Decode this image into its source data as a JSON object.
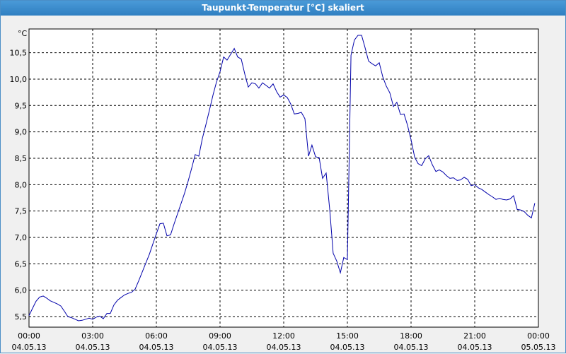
{
  "window": {
    "title": "Taupunkt-Temperatur [°C] skaliert"
  },
  "chart_data": {
    "type": "line",
    "title": "Taupunkt-Temperatur [°C] skaliert",
    "ylabel": "°C",
    "xlabel": "",
    "ylim": [
      5.3,
      10.95
    ],
    "xlim_hours": [
      0,
      24
    ],
    "grid": true,
    "line_color": "#0000aa",
    "y_ticks": [
      {
        "value": 5.5,
        "label": "5,5"
      },
      {
        "value": 6.0,
        "label": "6,0"
      },
      {
        "value": 6.5,
        "label": "6,5"
      },
      {
        "value": 7.0,
        "label": "7,0"
      },
      {
        "value": 7.5,
        "label": "7,5"
      },
      {
        "value": 8.0,
        "label": "8,0"
      },
      {
        "value": 8.5,
        "label": "8,5"
      },
      {
        "value": 9.0,
        "label": "9,0"
      },
      {
        "value": 9.5,
        "label": "9,5"
      },
      {
        "value": 10.0,
        "label": "10,0"
      },
      {
        "value": 10.5,
        "label": "10,5"
      }
    ],
    "x_ticks": [
      {
        "hour": 0,
        "time": "00:00",
        "date": "04.05.13"
      },
      {
        "hour": 3,
        "time": "03:00",
        "date": "04.05.13"
      },
      {
        "hour": 6,
        "time": "06:00",
        "date": "04.05.13"
      },
      {
        "hour": 9,
        "time": "09:00",
        "date": "04.05.13"
      },
      {
        "hour": 12,
        "time": "12:00",
        "date": "04.05.13"
      },
      {
        "hour": 15,
        "time": "15:00",
        "date": "04.05.13"
      },
      {
        "hour": 18,
        "time": "18:00",
        "date": "04.05.13"
      },
      {
        "hour": 21,
        "time": "21:00",
        "date": "04.05.13"
      },
      {
        "hour": 24,
        "time": "00:00",
        "date": "05.05.13"
      }
    ],
    "series": [
      {
        "x": [
          0.0,
          0.17,
          0.33,
          0.5,
          0.67,
          0.83,
          1.0,
          1.17,
          1.33,
          1.5,
          1.67,
          1.83,
          2.0,
          2.17,
          2.33,
          2.5,
          2.67,
          2.83,
          3.0,
          3.17,
          3.33,
          3.5,
          3.67,
          3.83,
          4.0,
          4.17,
          4.33,
          4.5,
          4.67,
          4.83,
          5.0,
          5.17,
          5.33,
          5.5,
          5.67,
          5.83,
          6.0,
          6.17,
          6.33,
          6.5,
          6.67,
          6.83,
          7.0,
          7.17,
          7.33,
          7.5,
          7.67,
          7.83,
          8.0,
          8.17,
          8.33,
          8.5,
          8.67,
          8.83,
          9.0,
          9.17,
          9.33,
          9.5,
          9.67,
          9.83,
          10.0,
          10.17,
          10.33,
          10.5,
          10.67,
          10.83,
          11.0,
          11.17,
          11.33,
          11.5,
          11.67,
          11.83,
          12.0,
          12.17,
          12.33,
          12.5,
          12.67,
          12.83,
          13.0,
          13.17,
          13.33,
          13.5,
          13.67,
          13.83,
          14.0,
          14.17,
          14.33,
          14.5,
          14.67,
          14.83,
          15.0,
          15.17,
          15.33,
          15.5,
          15.67,
          15.83,
          16.0,
          16.17,
          16.33,
          16.5,
          16.67,
          16.83,
          17.0,
          17.17,
          17.33,
          17.5,
          17.67,
          17.83,
          18.0,
          18.17,
          18.33,
          18.5,
          18.67,
          18.83,
          19.0,
          19.17,
          19.33,
          19.5,
          19.67,
          19.83,
          20.0,
          20.17,
          20.33,
          20.5,
          20.67,
          20.83,
          21.0,
          21.17,
          21.33,
          21.5,
          21.67,
          21.83,
          22.0,
          22.17,
          22.33,
          22.5,
          22.67,
          22.83,
          23.0,
          23.17,
          23.33,
          23.5,
          23.67,
          23.83
        ],
        "y": [
          5.52,
          5.66,
          5.79,
          5.87,
          5.89,
          5.85,
          5.8,
          5.77,
          5.74,
          5.7,
          5.6,
          5.5,
          5.48,
          5.45,
          5.42,
          5.43,
          5.45,
          5.47,
          5.45,
          5.49,
          5.51,
          5.46,
          5.56,
          5.56,
          5.72,
          5.81,
          5.86,
          5.91,
          5.94,
          5.96,
          6.02,
          6.18,
          6.34,
          6.51,
          6.68,
          6.87,
          7.07,
          7.26,
          7.27,
          7.03,
          7.05,
          7.25,
          7.45,
          7.65,
          7.84,
          8.07,
          8.32,
          8.57,
          8.54,
          8.88,
          9.13,
          9.41,
          9.7,
          9.94,
          10.14,
          10.42,
          10.36,
          10.47,
          10.58,
          10.42,
          10.38,
          10.09,
          9.85,
          9.93,
          9.91,
          9.83,
          9.93,
          9.88,
          9.83,
          9.91,
          9.76,
          9.66,
          9.7,
          9.65,
          9.53,
          9.34,
          9.35,
          9.37,
          9.25,
          8.54,
          8.75,
          8.53,
          8.51,
          8.12,
          8.22,
          7.52,
          6.7,
          6.55,
          6.33,
          6.62,
          6.58,
          10.45,
          10.74,
          10.83,
          10.83,
          10.6,
          10.34,
          10.29,
          10.25,
          10.31,
          10.04,
          9.87,
          9.74,
          9.48,
          9.56,
          9.33,
          9.34,
          9.13,
          8.85,
          8.52,
          8.4,
          8.36,
          8.49,
          8.55,
          8.38,
          8.25,
          8.28,
          8.24,
          8.17,
          8.12,
          8.13,
          8.08,
          8.09,
          8.14,
          8.1,
          7.98,
          8.0,
          7.94,
          7.91,
          7.86,
          7.81,
          7.77,
          7.72,
          7.74,
          7.72,
          7.71,
          7.73,
          7.79,
          7.53,
          7.52,
          7.49,
          7.42,
          7.37,
          7.65
        ]
      }
    ]
  }
}
